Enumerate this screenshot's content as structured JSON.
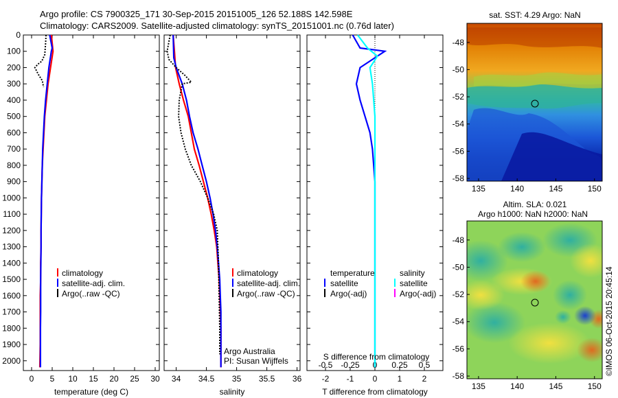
{
  "header": {
    "line1": "Argo profile: CS 7900325_171 30-Sep-2015 20151005_126 52.188S 142.598E",
    "line2": "Climatology: CARS2009. Satellite-adjusted climatology: synTS_20151001.nc (0.76d later)"
  },
  "colors": {
    "climatology": "#ff0000",
    "satellite": "#0000ff",
    "argo": "#000000",
    "satellite_s": "#00ffff",
    "argo_s": "#ff00ff"
  },
  "chart_data": [
    {
      "type": "line",
      "id": "temperature",
      "xlabel": "temperature (deg C)",
      "xlim": [
        -2,
        31
      ],
      "ylim": [
        2060,
        0
      ],
      "xticks": [
        0,
        5,
        10,
        15,
        20,
        25,
        30
      ],
      "yticks": [
        0,
        100,
        200,
        300,
        400,
        500,
        600,
        700,
        800,
        900,
        1000,
        1100,
        1200,
        1300,
        1400,
        1500,
        1600,
        1700,
        1800,
        1900,
        2000
      ],
      "legend": [
        "climatology",
        "satellite-adj. clim.",
        "Argo(..raw -QC)"
      ],
      "series": [
        {
          "name": "climatology",
          "color": "#ff0000",
          "x": [
            4.8,
            5.2,
            4.6,
            4.0,
            3.6,
            3.2,
            3.0,
            2.8,
            2.6,
            2.5,
            2.4,
            2.3,
            2.3,
            2.2,
            2.2,
            2.1,
            2.1,
            2.1,
            2.1,
            2.0
          ],
          "y": [
            0,
            100,
            200,
            300,
            400,
            500,
            600,
            700,
            800,
            900,
            1000,
            1200,
            1300,
            1400,
            1500,
            1600,
            1700,
            1800,
            1900,
            2040
          ]
        },
        {
          "name": "satellite-adj. clim.",
          "color": "#0000ff",
          "x": [
            4.4,
            5.0,
            4.8,
            4.2,
            3.8,
            3.4,
            3.1,
            2.9,
            2.7,
            2.6,
            2.5,
            2.4,
            2.35,
            2.3,
            2.3,
            2.25,
            2.2,
            2.2,
            2.2,
            2.15,
            2.15
          ],
          "y": [
            0,
            80,
            100,
            200,
            300,
            400,
            500,
            600,
            700,
            800,
            900,
            1000,
            1100,
            1200,
            1300,
            1400,
            1500,
            1600,
            1700,
            1800,
            2040
          ]
        },
        {
          "name": "Argo(..raw -QC)",
          "color": "#000000",
          "x": [
            3.5,
            3.4,
            3.2,
            2.5,
            1.5,
            0.8,
            1.6,
            2.6,
            2.9
          ],
          "y": [
            0,
            50,
            120,
            160,
            180,
            200,
            240,
            280,
            320
          ]
        }
      ]
    },
    {
      "type": "line",
      "id": "salinity",
      "xlabel": "salinity",
      "xlim": [
        33.8,
        36.05
      ],
      "ylim": [
        2060,
        0
      ],
      "xticks": [
        34,
        34.5,
        35,
        35.5,
        36
      ],
      "legend": [
        "climatology",
        "satellite-adj. clim.",
        "Argo(..raw -QC)"
      ],
      "annotation": [
        "Argo Australia",
        "PI: Susan Wijffels"
      ],
      "series": [
        {
          "name": "climatology",
          "color": "#ff0000",
          "x": [
            33.95,
            33.97,
            33.99,
            34.05,
            34.12,
            34.2,
            34.25,
            34.3,
            34.38,
            34.45,
            34.52,
            34.58,
            34.63,
            34.67,
            34.69,
            34.71,
            34.72,
            34.73,
            34.74,
            34.74
          ],
          "y": [
            0,
            100,
            200,
            300,
            400,
            500,
            600,
            700,
            800,
            900,
            1000,
            1100,
            1200,
            1300,
            1400,
            1500,
            1600,
            1700,
            1800,
            2040
          ]
        },
        {
          "name": "satellite-adj. clim.",
          "color": "#0000ff",
          "x": [
            33.95,
            33.96,
            34.0,
            34.1,
            34.17,
            34.22,
            34.28,
            34.36,
            34.43,
            34.5,
            34.56,
            34.61,
            34.65,
            34.68,
            34.7,
            34.72,
            34.73,
            34.74,
            34.74
          ],
          "y": [
            0,
            140,
            200,
            300,
            400,
            500,
            600,
            700,
            800,
            900,
            1000,
            1100,
            1200,
            1300,
            1400,
            1500,
            1600,
            1700,
            2040
          ]
        },
        {
          "name": "Argo(..raw -QC)",
          "color": "#000000",
          "x": [
            33.9,
            33.85,
            33.88,
            34.0,
            34.15,
            34.25,
            34.1,
            34.05,
            34.04,
            34.08,
            34.15,
            34.25,
            34.4,
            34.52,
            34.62,
            34.68,
            34.7,
            34.71,
            34.72,
            34.72
          ],
          "y": [
            0,
            100,
            150,
            200,
            250,
            290,
            300,
            400,
            500,
            600,
            700,
            800,
            900,
            1000,
            1100,
            1200,
            1400,
            1600,
            1800,
            1960
          ]
        }
      ]
    },
    {
      "type": "line",
      "id": "difference",
      "xlabel": "T difference from climatology",
      "xlabel_top": "S difference from climatology",
      "xlim": [
        -2.75,
        2.75
      ],
      "ylim": [
        2060,
        0
      ],
      "xticks": [
        -2,
        -1,
        0,
        1,
        2
      ],
      "xticks_s": [
        -0.5,
        -0.25,
        0,
        0.25,
        0.5
      ],
      "legend_left": {
        "title": "temperature",
        "items": [
          "satellite",
          "Argo(-adj)"
        ]
      },
      "legend_right": {
        "title": "salinity",
        "items": [
          "satellite",
          "Argo(-adj)"
        ]
      },
      "series": [
        {
          "name": "temperature satellite",
          "color": "#0000ff",
          "x": [
            -0.9,
            -0.6,
            0.4,
            -0.6,
            -0.75,
            -0.6,
            -0.4,
            -0.2,
            -0.1,
            0.0,
            0.0,
            0.0,
            0.0,
            0.0,
            0.0
          ],
          "y": [
            0,
            80,
            100,
            200,
            300,
            400,
            500,
            600,
            700,
            900,
            1100,
            1300,
            1500,
            1800,
            2040
          ]
        },
        {
          "name": "salinity satellite",
          "color": "#00ffff",
          "x": [
            -0.7,
            -0.3,
            0.1,
            -0.2,
            -0.1,
            0.0,
            0.0,
            0.0,
            0.0,
            0.0,
            0.0,
            0.0,
            0.0
          ],
          "y": [
            0,
            80,
            130,
            200,
            300,
            500,
            700,
            900,
            1100,
            1400,
            1700,
            1900,
            2040
          ]
        }
      ]
    }
  ],
  "maps": {
    "sst": {
      "title": "sat. SST: 4.29 Argo: NaN",
      "yticks": [
        -48,
        -50,
        -52,
        -54,
        -56,
        -58
      ],
      "xticks": [
        135,
        140,
        145,
        150
      ]
    },
    "sla": {
      "title1": "Altim. SLA: 0.021",
      "title2": "Argo h1000: NaN h2000: NaN",
      "yticks": [
        -48,
        -50,
        -52,
        -54,
        -56,
        -58
      ],
      "xticks": [
        135,
        140,
        145,
        150
      ]
    },
    "float_position": {
      "lon": 142.598,
      "lat": -52.188
    }
  },
  "footer": {
    "credit": "©IMOS 06-Oct-2015 20:45:14"
  }
}
